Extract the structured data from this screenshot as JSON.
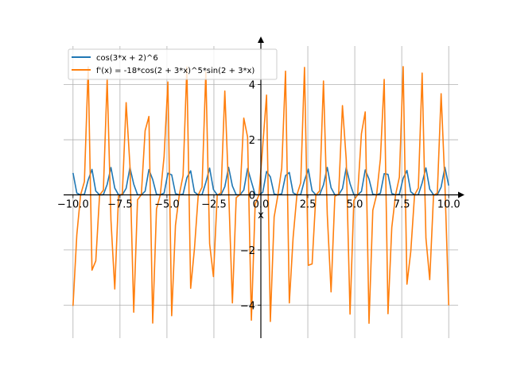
{
  "chart_data": {
    "type": "line",
    "title": "",
    "xlabel": "x",
    "ylabel": "",
    "xlim": [
      -10.5,
      10.5
    ],
    "ylim": [
      -5.2,
      5.4
    ],
    "grid": true,
    "legend_position": "top-left",
    "x_ticks": [
      {
        "value": -10.0,
        "label": "−10.0"
      },
      {
        "value": -7.5,
        "label": "−7.5"
      },
      {
        "value": -5.0,
        "label": "−5.0"
      },
      {
        "value": -2.5,
        "label": "−2.5"
      },
      {
        "value": 0.0,
        "label": "0.0"
      },
      {
        "value": 2.5,
        "label": "2.5"
      },
      {
        "value": 5.0,
        "label": "5.0"
      },
      {
        "value": 7.5,
        "label": "7.5"
      },
      {
        "value": 10.0,
        "label": "10.0"
      }
    ],
    "y_ticks": [
      {
        "value": -4,
        "label": "−4"
      },
      {
        "value": -2,
        "label": "−2"
      },
      {
        "value": 0,
        "label": "0"
      },
      {
        "value": 2,
        "label": "2"
      },
      {
        "value": 4,
        "label": "4"
      }
    ],
    "x_sampling": {
      "start": -10,
      "end": 10,
      "count": 100
    },
    "series": [
      {
        "name": "cos(3*x + 2)^6",
        "color": "#1f77b4",
        "expression": "cos(3*x + 2)^6"
      },
      {
        "name": "f'(x) = -18*cos(2 + 3*x)^5*sin(2 + 3*x)",
        "color": "#ff7f0e",
        "expression": "-18*cos(2 + 3*x)^5*sin(2 + 3*x)"
      }
    ]
  }
}
